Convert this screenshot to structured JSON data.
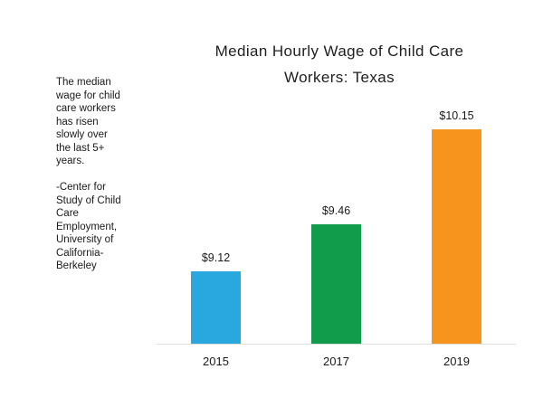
{
  "chart_data": {
    "type": "bar",
    "title": "Median Hourly Wage of Child Care Workers: Texas",
    "title_display": "Median Hourly Wage of Child Care\nWorkers: Texas",
    "categories": [
      "2015",
      "2017",
      "2019"
    ],
    "values": [
      9.12,
      9.46,
      10.15
    ],
    "value_labels": [
      "$9.12",
      "$9.46",
      "$10.15"
    ],
    "colors": [
      "#29a8e0",
      "#119c4b",
      "#f7941e"
    ],
    "ylim": [
      8.6,
      10.2
    ],
    "grid": false,
    "legend": "none",
    "axis_line_color": "#dedede",
    "annotation": "The median\nwage for child\ncare workers\nhas risen\nslowly over\nthe last 5+\nyears.\n\n-Center for\nStudy of Child\nCare\nEmployment,\nUniversity of\nCalifornia-\nBerkeley"
  }
}
